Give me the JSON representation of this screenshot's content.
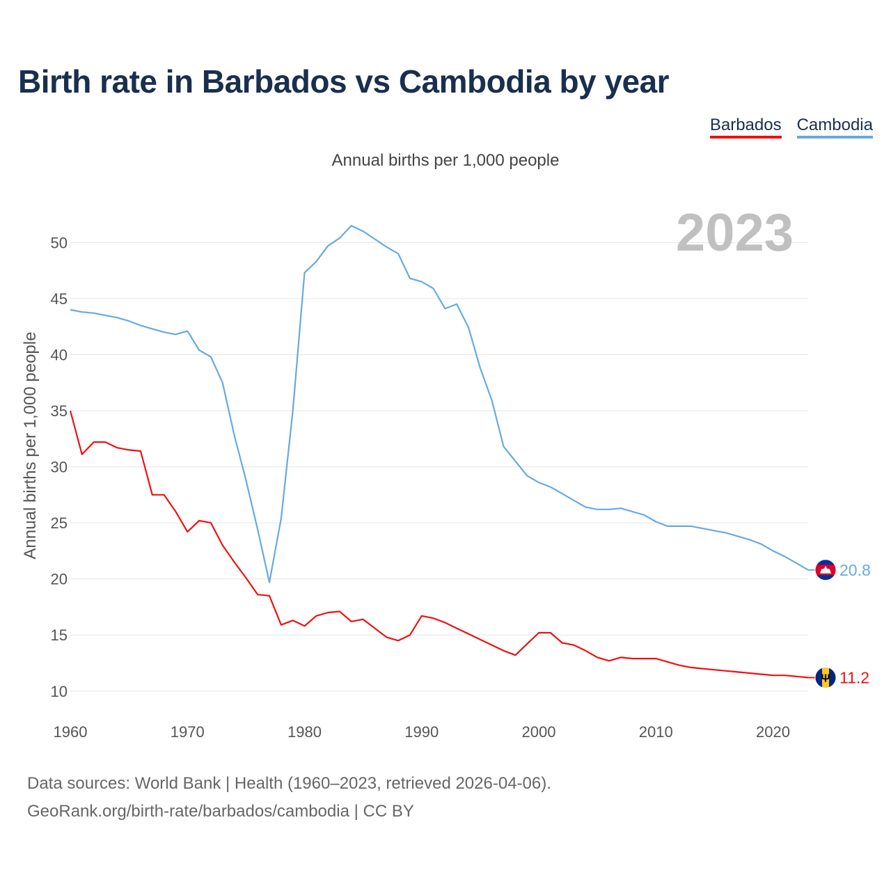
{
  "title": "Birth rate in Barbados vs Cambodia by year",
  "subtitle": "Annual births per 1,000 people",
  "legend": [
    {
      "label": "Barbados",
      "color": "#ee1111"
    },
    {
      "label": "Cambodia",
      "color": "#66aae2"
    }
  ],
  "year_watermark": "2023",
  "footer": {
    "line1": "Data sources: World Bank | Health (1960–2023, retrieved 2026-04-06).",
    "line2": "GeoRank.org/birth-rate/barbados/cambodia | CC BY"
  },
  "chart_data": {
    "type": "line",
    "title": "Birth rate in Barbados vs Cambodia by year",
    "ylabel": "Annual births per 1,000 people",
    "xlabel": "",
    "xlim": [
      1960,
      2023
    ],
    "ylim": [
      8,
      53
    ],
    "yticks": [
      10,
      15,
      20,
      25,
      30,
      35,
      40,
      45,
      50
    ],
    "xticks": [
      1960,
      1970,
      1980,
      1990,
      2000,
      2010,
      2020
    ],
    "grid": true,
    "legend_position": "top-right",
    "x": [
      1960,
      1961,
      1962,
      1963,
      1964,
      1965,
      1966,
      1967,
      1968,
      1969,
      1970,
      1971,
      1972,
      1973,
      1974,
      1975,
      1976,
      1977,
      1978,
      1979,
      1980,
      1981,
      1982,
      1983,
      1984,
      1985,
      1986,
      1987,
      1988,
      1989,
      1990,
      1991,
      1992,
      1993,
      1994,
      1995,
      1996,
      1997,
      1998,
      1999,
      2000,
      2001,
      2002,
      2003,
      2004,
      2005,
      2006,
      2007,
      2008,
      2009,
      2010,
      2011,
      2012,
      2013,
      2014,
      2015,
      2016,
      2017,
      2018,
      2019,
      2020,
      2021,
      2022,
      2023
    ],
    "series": [
      {
        "name": "Barbados",
        "color": "#ee1111",
        "end_label": "11.2",
        "flag": "barbados-flag",
        "values": [
          35.0,
          31.1,
          32.2,
          32.2,
          31.7,
          31.5,
          31.4,
          27.5,
          27.5,
          26.0,
          24.2,
          25.2,
          25.0,
          23.0,
          21.5,
          20.1,
          18.6,
          18.5,
          15.9,
          16.3,
          15.8,
          16.7,
          17.0,
          17.1,
          16.2,
          16.4,
          15.6,
          14.8,
          14.5,
          15.0,
          16.7,
          16.5,
          16.1,
          15.6,
          15.1,
          14.6,
          14.1,
          13.6,
          13.2,
          14.2,
          15.2,
          15.2,
          14.3,
          14.1,
          13.6,
          13.0,
          12.7,
          13.0,
          12.9,
          12.9,
          12.9,
          12.6,
          12.3,
          12.1,
          12.0,
          11.9,
          11.8,
          11.7,
          11.6,
          11.5,
          11.4,
          11.4,
          11.3,
          11.2
        ]
      },
      {
        "name": "Cambodia",
        "color": "#66aae2",
        "end_label": "20.8",
        "flag": "cambodia-flag",
        "values": [
          44.0,
          43.8,
          43.7,
          43.5,
          43.3,
          43.0,
          42.6,
          42.3,
          42.0,
          41.8,
          42.1,
          40.4,
          39.8,
          37.5,
          32.8,
          28.8,
          24.4,
          19.7,
          25.4,
          35.0,
          47.3,
          48.3,
          49.7,
          50.4,
          51.5,
          51.0,
          50.3,
          49.6,
          49.0,
          46.8,
          46.5,
          45.9,
          44.1,
          44.5,
          42.4,
          38.8,
          35.9,
          31.8,
          30.5,
          29.2,
          28.6,
          28.2,
          27.6,
          27.0,
          26.4,
          26.2,
          26.2,
          26.3,
          26.0,
          25.7,
          25.1,
          24.7,
          24.7,
          24.7,
          24.5,
          24.3,
          24.1,
          23.8,
          23.5,
          23.1,
          22.5,
          22.0,
          21.4,
          20.8
        ]
      }
    ]
  }
}
